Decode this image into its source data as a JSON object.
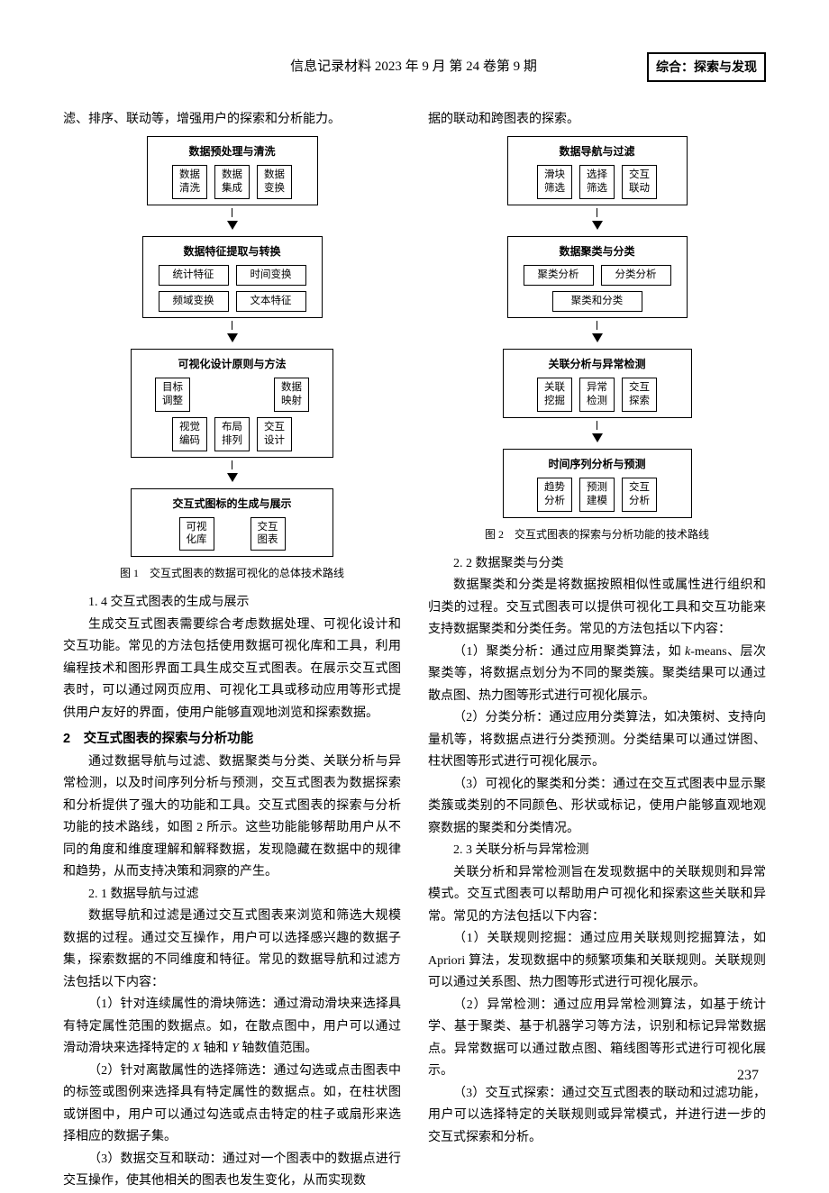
{
  "header": {
    "title": "信息记录材料 2023 年 9 月 第 24 卷第 9 期",
    "badge": "综合：探索与发现"
  },
  "left": {
    "p0": "滤、排序、联动等，增强用户的探索和分析能力。",
    "fig1": {
      "caption": "图 1　交互式图表的数据可视化的总体技术路线",
      "box1": {
        "title": "数据预处理与清洗",
        "cells": [
          "数据\n清洗",
          "数据\n集成",
          "数据\n变换"
        ]
      },
      "box2": {
        "title": "数据特征提取与转换",
        "row1": [
          "统计特征",
          "时间变换"
        ],
        "row2": [
          "频域变换",
          "文本特征"
        ]
      },
      "box3": {
        "title": "可视化设计原则与方法",
        "row1": [
          "目标\n调整",
          "数据\n映射"
        ],
        "row2": [
          "视觉\n编码",
          "布局\n排列",
          "交互\n设计"
        ]
      },
      "box4": {
        "title": "交互式图标的生成与展示",
        "cells": [
          "可视\n化库",
          "交互\n图表"
        ]
      }
    },
    "s14_title": "1. 4 交互式图表的生成与展示",
    "s14_p": "生成交互式图表需要综合考虑数据处理、可视化设计和交互功能。常见的方法包括使用数据可视化库和工具，利用编程技术和图形界面工具生成交互式图表。在展示交互式图表时，可以通过网页应用、可视化工具或移动应用等形式提供用户友好的界面，使用户能够直观地浏览和探索数据。",
    "s2_title": "2　交互式图表的探索与分析功能",
    "s2_p": "通过数据导航与过滤、数据聚类与分类、关联分析与异常检测，以及时间序列分析与预测，交互式图表为数据探索和分析提供了强大的功能和工具。交互式图表的探索与分析功能的技术路线，如图 2 所示。这些功能能够帮助用户从不同的角度和维度理解和解释数据，发现隐藏在数据中的规律和趋势，从而支持决策和洞察的产生。",
    "s21_title": "2. 1 数据导航与过滤",
    "s21_p": "数据导航和过滤是通过交互式图表来浏览和筛选大规模数据的过程。通过交互操作，用户可以选择感兴趣的数据子集，探索数据的不同维度和特征。常见的数据导航和过滤方法包括以下内容：",
    "s21_1_a": "（1）针对连续属性的滑块筛选：通过滑动滑块来选择具有特定属性范围的数据点。如，在散点图中，用户可以通过滑动滑块来选择特定的 ",
    "s21_1_x": "X",
    "s21_1_mid": " 轴和 ",
    "s21_1_y": "Y",
    "s21_1_b": " 轴数值范围。",
    "s21_2": "（2）针对离散属性的选择筛选：通过勾选或点击图表中的标签或图例来选择具有特定属性的数据点。如，在柱状图或饼图中，用户可以通过勾选或点击特定的柱子或扇形来选择相应的数据子集。",
    "s21_3": "（3）数据交互和联动：通过对一个图表中的数据点进行交互操作，使其他相关的图表也发生变化，从而实现数"
  },
  "right": {
    "p0": "据的联动和跨图表的探索。",
    "fig2": {
      "caption": "图 2　交互式图表的探索与分析功能的技术路线",
      "box1": {
        "title": "数据导航与过滤",
        "cells": [
          "滑块\n筛选",
          "选择\n筛选",
          "交互\n联动"
        ]
      },
      "box2": {
        "title": "数据聚类与分类",
        "row1": [
          "聚类分析",
          "分类分析"
        ],
        "row2": [
          "聚类和分类"
        ]
      },
      "box3": {
        "title": "关联分析与异常检测",
        "cells": [
          "关联\n挖掘",
          "异常\n检测",
          "交互\n探索"
        ]
      },
      "box4": {
        "title": "时间序列分析与预测",
        "cells": [
          "趋势\n分析",
          "预测\n建模",
          "交互\n分析"
        ]
      }
    },
    "s22_title": "2. 2 数据聚类与分类",
    "s22_p": "数据聚类和分类是将数据按照相似性或属性进行组织和归类的过程。交互式图表可以提供可视化工具和交互功能来支持数据聚类和分类任务。常见的方法包括以下内容：",
    "s22_1_a": "（1）聚类分析：通过应用聚类算法，如 ",
    "s22_1_k": "k",
    "s22_1_b": "-means、层次聚类等，将数据点划分为不同的聚类簇。聚类结果可以通过散点图、热力图等形式进行可视化展示。",
    "s22_2": "（2）分类分析：通过应用分类算法，如决策树、支持向量机等，将数据点进行分类预测。分类结果可以通过饼图、柱状图等形式进行可视化展示。",
    "s22_3": "（3）可视化的聚类和分类：通过在交互式图表中显示聚类簇或类别的不同颜色、形状或标记，使用户能够直观地观察数据的聚类和分类情况。",
    "s23_title": "2. 3 关联分析与异常检测",
    "s23_p": "关联分析和异常检测旨在发现数据中的关联规则和异常模式。交互式图表可以帮助用户可视化和探索这些关联和异常。常见的方法包括以下内容：",
    "s23_1": "（1）关联规则挖掘：通过应用关联规则挖掘算法，如 Apriori 算法，发现数据中的频繁项集和关联规则。关联规则可以通过关系图、热力图等形式进行可视化展示。",
    "s23_2": "（2）异常检测：通过应用异常检测算法，如基于统计学、基于聚类、基于机器学习等方法，识别和标记异常数据点。异常数据可以通过散点图、箱线图等形式进行可视化展示。",
    "s23_3": "（3）交互式探索：通过交互式图表的联动和过滤功能，用户可以选择特定的关联规则或异常模式，并进行进一步的交互式探索和分析。"
  },
  "page_num": "237"
}
